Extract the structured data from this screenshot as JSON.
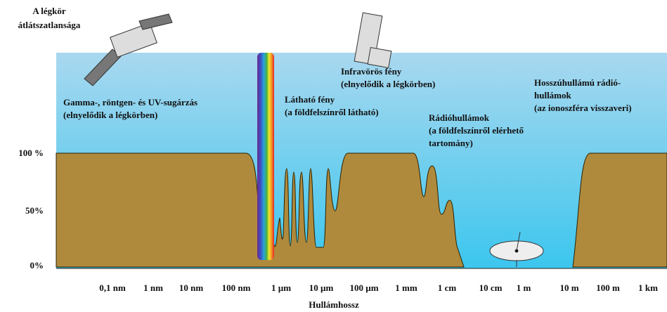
{
  "header": {
    "title_lines": [
      "A légkör",
      "átlátszatlansága"
    ]
  },
  "annotations": [
    {
      "lines": [
        "Gamma-, röntgen- és UV-sugárzás",
        "(elnyelődik a légkörben)"
      ]
    },
    {
      "lines": [
        "Látható fény",
        "(a földfelszínről látható)"
      ]
    },
    {
      "lines": [
        "Infravörös fény",
        "(elnyelődik a légkörben)"
      ]
    },
    {
      "lines": [
        "Rádióhullámok",
        "(a földfelszínről elérhető",
        "tartomány)"
      ]
    },
    {
      "lines": [
        "Hosszúhullámú rádió-",
        "hullámok",
        "(az ionoszféra visszaveri)"
      ]
    }
  ],
  "y_labels": [
    "100 %",
    "50%",
    "0%"
  ],
  "x_labels": [
    "0,1 nm",
    "1 nm",
    "10 nm",
    "100 nm",
    "1 µm",
    "10 µm",
    "100 µm",
    "1 mm",
    "1 cm",
    "10 cm",
    "1 m",
    "10 m",
    "100 m",
    "1 km"
  ],
  "x_axis_title": "Hullámhossz"
}
